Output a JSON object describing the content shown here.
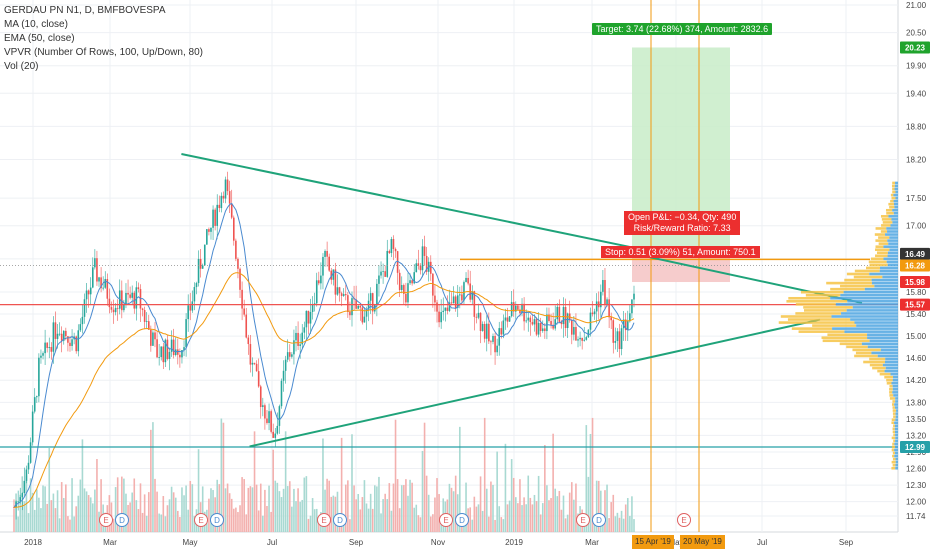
{
  "legend": {
    "symbol": "GERDAU PN N1, D, BMFBOVESPA",
    "ma": "MA (10, close)",
    "ema": "EMA (50, close)",
    "vpvr": "VPVR (Number Of Rows, 100, Up/Down, 80)",
    "vol": "Vol (20)"
  },
  "position": {
    "target_label": "Target: 3.74 (22.68%) 374, Amount: 2832.6",
    "pnl_label": "Open P&L: −0.34, Qty: 490",
    "rr_label": "Risk/Reward Ratio: 7.33",
    "stop_label": "Stop: 0.51 (3.09%) 51, Amount: 750.1"
  },
  "date_tags": [
    "15 Apr '19",
    "20 May '19"
  ],
  "price_badges": [
    {
      "value": "20.23",
      "color": "#1fa32c"
    },
    {
      "value": "16.49",
      "color": "#333333"
    },
    {
      "value": "16.28",
      "color": "#f29a0f"
    },
    {
      "value": "15.98",
      "color": "#ec2f2f"
    },
    {
      "value": "15.57",
      "color": "#ec2f2f"
    },
    {
      "value": "12.99",
      "color": "#26a0a8"
    }
  ],
  "event_markers": [
    {
      "label": "E",
      "color": "#e06060"
    },
    {
      "label": "D",
      "color": "#4a8ad0"
    },
    {
      "label": "E",
      "color": "#e06060"
    },
    {
      "label": "D",
      "color": "#4a8ad0"
    },
    {
      "label": "E",
      "color": "#e06060"
    },
    {
      "label": "D",
      "color": "#4a8ad0"
    },
    {
      "label": "E",
      "color": "#e06060"
    },
    {
      "label": "D",
      "color": "#4a8ad0"
    },
    {
      "label": "E",
      "color": "#e06060"
    },
    {
      "label": "D",
      "color": "#4a8ad0"
    },
    {
      "label": "E",
      "color": "#e06060"
    }
  ],
  "colors": {
    "up": "#26a69a",
    "down": "#ef5350",
    "ema": "#f29a0f",
    "ma": "#4a8ad0",
    "trendline": "#1fa37a",
    "target_zone": "#c8ecc8",
    "stop_zone": "#f5c6c6",
    "vpvr_up": "#f6c344",
    "vpvr_down": "#4ea5e0",
    "grid": "#eef0f4"
  },
  "chart_data": {
    "type": "candlestick",
    "title": "GERDAU PN N1, D, BMFBOVESPA",
    "x_ticks": [
      "2018",
      "Mar",
      "May",
      "Jul",
      "Sep",
      "Nov",
      "2019",
      "Mar",
      "May",
      "Jul",
      "Sep"
    ],
    "y_ticks": [
      "21.00",
      "20.50",
      "19.90",
      "19.40",
      "18.80",
      "18.20",
      "17.50",
      "17.00",
      "16.40",
      "15.80",
      "15.40",
      "15.00",
      "14.60",
      "14.20",
      "13.80",
      "13.50",
      "13.20",
      "12.90",
      "12.60",
      "12.30",
      "12.00",
      "11.74"
    ],
    "ylim": [
      11.6,
      21.2
    ],
    "price_anchors": [
      {
        "t": 0.0,
        "p": 11.9
      },
      {
        "t": 0.02,
        "p": 12.5
      },
      {
        "t": 0.04,
        "p": 14.4
      },
      {
        "t": 0.07,
        "p": 15.2
      },
      {
        "t": 0.1,
        "p": 14.9
      },
      {
        "t": 0.13,
        "p": 16.2
      },
      {
        "t": 0.16,
        "p": 15.6
      },
      {
        "t": 0.2,
        "p": 15.7
      },
      {
        "t": 0.23,
        "p": 14.7
      },
      {
        "t": 0.27,
        "p": 14.8
      },
      {
        "t": 0.3,
        "p": 16.3
      },
      {
        "t": 0.34,
        "p": 17.8
      },
      {
        "t": 0.36,
        "p": 16.4
      },
      {
        "t": 0.38,
        "p": 14.6
      },
      {
        "t": 0.4,
        "p": 13.8
      },
      {
        "t": 0.42,
        "p": 13.2
      },
      {
        "t": 0.44,
        "p": 14.6
      },
      {
        "t": 0.47,
        "p": 15.2
      },
      {
        "t": 0.5,
        "p": 16.4
      },
      {
        "t": 0.53,
        "p": 15.6
      },
      {
        "t": 0.57,
        "p": 15.4
      },
      {
        "t": 0.61,
        "p": 16.6
      },
      {
        "t": 0.63,
        "p": 15.6
      },
      {
        "t": 0.66,
        "p": 16.5
      },
      {
        "t": 0.69,
        "p": 15.3
      },
      {
        "t": 0.73,
        "p": 15.9
      },
      {
        "t": 0.77,
        "p": 14.8
      },
      {
        "t": 0.81,
        "p": 15.6
      },
      {
        "t": 0.85,
        "p": 15.1
      },
      {
        "t": 0.88,
        "p": 15.4
      },
      {
        "t": 0.92,
        "p": 15.0
      },
      {
        "t": 0.95,
        "p": 15.9
      },
      {
        "t": 0.97,
        "p": 14.8
      },
      {
        "t": 1.0,
        "p": 15.6
      }
    ],
    "trendlines": [
      {
        "from": [
          0.27,
          18.3
        ],
        "to": [
          1.0,
          16.6
        ]
      },
      {
        "from": [
          0.38,
          13.0
        ],
        "to": [
          1.3,
          15.3
        ]
      }
    ],
    "vpvr_peak": 15.4
  }
}
